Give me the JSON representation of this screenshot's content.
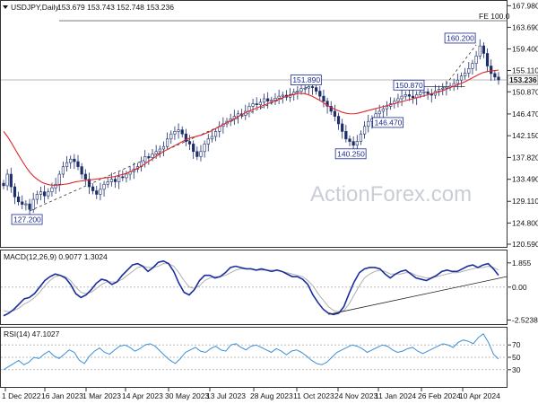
{
  "chart_data": {
    "type": "candlestick",
    "symbol_title": "USDJPY,Daily",
    "ohlc_text": "153.679 153.743 152.748 153.236",
    "watermark": "ActionForex.com",
    "price_panel": {
      "ylim": [
        120.59,
        168.4
      ],
      "yticks": [
        "167.980",
        "163.690",
        "159.400",
        "155.110",
        "150.870",
        "146.470",
        "142.150",
        "137.820",
        "133.490",
        "129.110",
        "124.800",
        "120.590"
      ],
      "ytick_values": [
        167.98,
        163.69,
        159.4,
        155.11,
        150.87,
        146.47,
        142.15,
        137.82,
        133.49,
        129.11,
        124.8,
        120.59
      ],
      "last_price_label": "153.236",
      "last_price": 153.236,
      "fe_label": "FE 100.0",
      "fe_level": 165.0,
      "close_series": [
        132.2,
        134.5,
        132.0,
        130.0,
        129.0,
        128.5,
        128.6,
        127.5,
        129.5,
        130.5,
        131.0,
        130.2,
        131.0,
        131.8,
        132.5,
        134.5,
        136.0,
        136.8,
        137.5,
        137.0,
        136.0,
        134.5,
        133.5,
        132.0,
        131.2,
        130.5,
        131.5,
        132.5,
        133.0,
        133.5,
        133.0,
        134.0,
        133.8,
        134.5,
        135.0,
        135.5,
        136.0,
        137.0,
        138.0,
        137.8,
        138.5,
        139.0,
        139.5,
        140.0,
        141.5,
        142.5,
        143.0,
        143.3,
        142.5,
        141.0,
        140.5,
        139.0,
        138.0,
        139.0,
        140.5,
        141.5,
        142.0,
        143.0,
        144.0,
        144.5,
        145.0,
        145.5,
        146.0,
        146.5,
        146.2,
        147.0,
        148.0,
        148.5,
        148.3,
        148.8,
        149.5,
        149.0,
        149.2,
        149.6,
        150.0,
        150.2,
        149.8,
        150.3,
        150.8,
        151.0,
        151.5,
        151.6,
        151.9,
        151.7,
        151.0,
        150.0,
        149.0,
        148.0,
        147.0,
        146.0,
        144.5,
        143.0,
        141.5,
        141.0,
        140.25,
        141.0,
        142.5,
        144.0,
        145.0,
        145.5,
        146.5,
        147.0,
        147.5,
        148.0,
        148.5,
        149.0,
        149.5,
        150.0,
        150.3,
        150.0,
        149.7,
        150.3,
        150.8,
        150.87,
        150.5,
        150.2,
        151.0,
        151.4,
        151.6,
        151.8,
        152.0,
        152.5,
        153.2,
        154.0,
        154.6,
        155.5,
        156.5,
        158.0,
        160.0,
        158.5,
        156.0,
        154.5,
        153.8,
        153.236
      ],
      "sma_series": [
        143.0,
        142.0,
        140.8,
        139.5,
        138.2,
        137.0,
        135.8,
        134.8,
        134.0,
        133.4,
        132.9,
        132.6,
        132.4,
        132.3,
        132.3,
        132.4,
        132.5,
        132.6,
        132.8,
        133.0,
        133.1,
        133.2,
        133.3,
        133.4,
        133.5,
        133.6,
        133.7,
        133.8,
        133.9,
        134.0,
        134.2,
        134.4,
        134.6,
        134.9,
        135.2,
        135.6,
        136.0,
        136.5,
        137.0,
        137.5,
        138.0,
        138.5,
        139.0,
        139.4,
        139.8,
        140.2,
        140.6,
        141.0,
        141.4,
        141.7,
        141.9,
        142.1,
        142.3,
        142.6,
        142.9,
        143.3,
        143.7,
        144.1,
        144.5,
        144.9,
        145.3,
        145.7,
        146.1,
        146.5,
        146.9,
        147.2,
        147.5,
        147.8,
        148.1,
        148.4,
        148.7,
        149.0,
        149.3,
        149.6,
        149.9,
        150.1,
        150.3,
        150.5,
        150.6,
        150.5,
        150.3,
        150.0,
        149.6,
        149.2,
        148.7,
        148.2,
        147.8,
        147.4,
        147.1,
        146.8,
        146.6,
        146.5,
        146.5,
        146.6,
        146.8,
        147.0,
        147.2,
        147.4,
        147.6,
        147.8,
        148.0,
        148.2,
        148.4,
        148.6,
        148.8,
        149.0,
        149.2,
        149.4,
        149.6,
        149.8,
        150.0,
        150.2,
        150.4,
        150.6,
        150.8,
        151.0,
        151.3,
        151.6,
        151.9,
        152.2,
        152.5,
        152.8,
        153.2,
        153.6,
        154.0,
        154.4,
        154.7,
        154.9,
        155.0,
        155.1,
        155.2
      ],
      "annotations": [
        {
          "label": "127.200",
          "value": 127.2
        },
        {
          "label": "151.890",
          "value": 151.89
        },
        {
          "label": "140.250",
          "value": 140.25
        },
        {
          "label": "150.870",
          "value": 150.87
        },
        {
          "label": "146.470",
          "value": 146.47
        },
        {
          "label": "160.200",
          "value": 160.2
        }
      ]
    },
    "macd_panel": {
      "title": "MACD(12,26,9) 0.9077 1.3024",
      "yticks": [
        "1.855",
        "0.00",
        "-2.5238"
      ],
      "ytick_values": [
        1.855,
        0.0,
        -2.5238
      ],
      "ylim": [
        -2.7,
        2.6
      ],
      "macd_series": [
        -2.2,
        -2.0,
        -1.7,
        -1.3,
        -0.9,
        -0.8,
        -0.5,
        0.0,
        0.5,
        0.8,
        1.0,
        0.9,
        0.7,
        0.2,
        -0.5,
        -0.8,
        -0.6,
        -0.2,
        0.3,
        0.6,
        0.5,
        0.2,
        0.4,
        0.9,
        1.3,
        1.7,
        1.8,
        1.6,
        1.2,
        1.5,
        1.9,
        2.0,
        1.8,
        1.2,
        0.3,
        -0.4,
        -0.6,
        -0.2,
        0.5,
        0.9,
        0.9,
        0.7,
        0.8,
        1.1,
        1.5,
        1.6,
        1.5,
        1.4,
        1.4,
        1.3,
        1.4,
        1.3,
        1.2,
        1.3,
        1.2,
        1.0,
        0.8,
        0.8,
        0.6,
        0.2,
        -0.6,
        -1.2,
        -1.7,
        -2.0,
        -2.1,
        -2.0,
        -1.5,
        -0.5,
        0.4,
        1.1,
        1.4,
        1.5,
        1.5,
        1.4,
        1.0,
        0.7,
        1.0,
        1.2,
        1.3,
        1.0,
        0.7,
        0.6,
        0.5,
        0.7,
        0.9,
        1.2,
        1.3,
        1.2,
        1.2,
        1.4,
        1.6,
        1.7,
        1.5,
        1.7,
        1.8,
        1.4,
        0.9077
      ],
      "signal_series": [
        -1.8,
        -1.9,
        -1.8,
        -1.6,
        -1.3,
        -1.1,
        -0.8,
        -0.4,
        0.1,
        0.5,
        0.8,
        0.9,
        0.8,
        0.5,
        0.0,
        -0.4,
        -0.5,
        -0.4,
        -0.1,
        0.2,
        0.4,
        0.4,
        0.4,
        0.6,
        0.9,
        1.2,
        1.5,
        1.6,
        1.5,
        1.5,
        1.6,
        1.8,
        1.8,
        1.6,
        1.1,
        0.5,
        0.0,
        -0.1,
        0.1,
        0.5,
        0.7,
        0.8,
        0.8,
        0.9,
        1.1,
        1.3,
        1.4,
        1.4,
        1.4,
        1.3,
        1.3,
        1.3,
        1.3,
        1.3,
        1.2,
        1.1,
        1.0,
        0.9,
        0.8,
        0.5,
        0.1,
        -0.5,
        -1.0,
        -1.5,
        -1.8,
        -1.9,
        -1.8,
        -1.3,
        -0.6,
        0.1,
        0.7,
        1.0,
        1.2,
        1.3,
        1.2,
        1.0,
        1.0,
        1.0,
        1.1,
        1.1,
        0.9,
        0.8,
        0.7,
        0.7,
        0.8,
        0.9,
        1.0,
        1.1,
        1.1,
        1.2,
        1.3,
        1.4,
        1.5,
        1.5,
        1.6,
        1.5,
        1.3024
      ]
    },
    "rsi_panel": {
      "title": "RSI(14) 47.1027",
      "yticks": [
        "70",
        "50",
        "30"
      ],
      "ytick_values": [
        70,
        50,
        30
      ],
      "ylim": [
        5,
        95
      ],
      "rsi_series": [
        30,
        35,
        40,
        45,
        38,
        42,
        50,
        48,
        55,
        60,
        52,
        48,
        55,
        62,
        58,
        45,
        40,
        52,
        60,
        65,
        58,
        55,
        62,
        68,
        70,
        66,
        60,
        64,
        70,
        72,
        68,
        60,
        52,
        45,
        40,
        48,
        58,
        62,
        66,
        60,
        58,
        64,
        68,
        62,
        60,
        70,
        72,
        66,
        62,
        68,
        70,
        66,
        62,
        58,
        64,
        60,
        54,
        60,
        62,
        58,
        52,
        45,
        40,
        38,
        42,
        50,
        58,
        62,
        66,
        70,
        68,
        64,
        58,
        62,
        66,
        70,
        68,
        62,
        58,
        60,
        64,
        66,
        60,
        56,
        60,
        64,
        68,
        72,
        70,
        66,
        74,
        78,
        76,
        72,
        82,
        88,
        74,
        55,
        47.1
      ]
    },
    "x_ticks": [
      "1 Dec 2022",
      "16 Jan 2023",
      "1 Mar 2023",
      "14 Apr 2023",
      "30 May 2023",
      "13 Jul 2023",
      "28 Aug 2023",
      "11 Oct 2023",
      "24 Nov 2023",
      "11 Jan 2024",
      "26 Feb 2024",
      "10 Apr 2024"
    ],
    "colors": {
      "sma": "#e0282a",
      "candle": "#1d2e6b",
      "rsi": "#3d8fd6",
      "macd": "#1a2ea0",
      "signal": "#b0b0b0",
      "annot_border": "#1a2a8c"
    }
  }
}
